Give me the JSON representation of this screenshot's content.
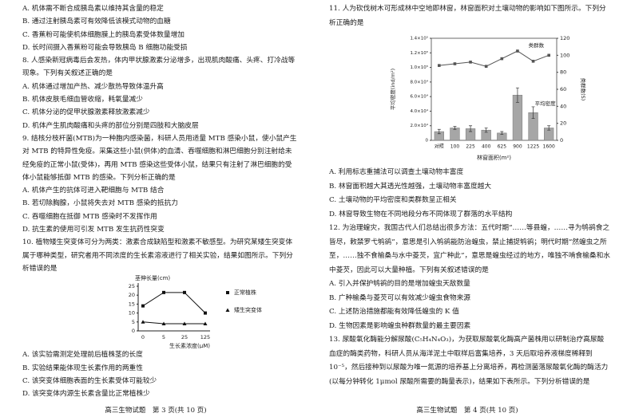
{
  "left_page": {
    "q7_options": [
      "A. 机体需不断合成胰岛素以维持其含量的稳定",
      "B. 通过注射胰岛素可有效降低该模式动物的血糖",
      "C. 香蕉粉可能使机体细胞膜上的胰岛素受体数量增加",
      "D. 长时间摄入香蕉粉可能会导致胰岛 B 细胞功能受损"
    ],
    "q8": {
      "stem": "8. 人感染新冠病毒后会发热，体内甲状腺激素分泌增多，出现肌肉酸痛、头疼、打冷战等现象。下列有关叙述正确的是",
      "options": [
        "A. 机体通过增加产热、减少散热导致体温升高",
        "B. 机体皮肤毛细血管收缩，耗氧量减少",
        "C. 机体分泌的促甲状腺激素释放激素减少",
        "D. 机体产生肌肉酸痛和头疼的部位分别是四肢和大脑皮层"
      ]
    },
    "q9": {
      "stem": "9. 结核分枝杆菌(MTB)为一种胞内感染菌，科研人员用适量 MTB 感染小鼠，使小鼠产生对 MTB 的特异性免疫。采集这些小鼠(供体)的血清、吞噬细胞和淋巴细胞分别注射给未经免疫的正常小鼠(受体)，再用 MTB 感染这些受体小鼠，结果只有注射了淋巴细胞的受体小鼠能够抵御 MTB 的感染。下列分析正确的是",
      "options": [
        "A. 机体产生的抗体可进入靶细胞与 MTB 结合",
        "B. 若切除胸腺，小鼠将失去对 MTB 感染的抵抗力",
        "C. 吞噬细胞在抵御 MTB 感染时不发挥作用",
        "D. 抗生素的使用可引发 MTB 发生抗药性突变"
      ]
    },
    "q10": {
      "stem": "10. 植物矮生突变体可分为两类：激素合成缺陷型和激素不敏感型。为研究某矮生突变体属于哪种类型，研究者用不同浓度的生长素溶液进行了相关实验，结果如图所示。下列分析错误的是",
      "figure": {
        "type": "line",
        "y_label": "茎伸长量(cm)",
        "x_label": "生长素浓度(μM)",
        "categories": [
          "0",
          "5",
          "25",
          "125"
        ],
        "series": [
          {
            "name": "正常植株",
            "color": "#111111",
            "marker": "square",
            "values": [
              14,
              21.5,
              21.5,
              10
            ]
          },
          {
            "name": "矮生突变体",
            "color": "#111111",
            "marker": "triangle",
            "values": [
              5,
              4,
              4,
              4
            ]
          }
        ],
        "ylim": [
          0,
          25
        ],
        "yticks": [
          0,
          5,
          10,
          15,
          20,
          25
        ]
      },
      "options": [
        "A. 该实验需测定处理前后植株茎的长度",
        "B. 实验结果能体现生长素作用的两重性",
        "C. 该突变体细胞表面的生长素受体可能较少",
        "D. 该突变体内源生长素含量比正常植株少"
      ]
    },
    "footer": "高三生物试题　第 3 页(共 10 页)"
  },
  "right_page": {
    "q11": {
      "stem": "11. 人为砍伐树木可形成林中空地即林窗，林窗面积对土壤动物的影响如下图所示。下列分析正确的是",
      "figure": {
        "type": "bar_line",
        "y_label": "平均密度(ind/m²)",
        "y2_label": "类群数(S)",
        "x_label": "林窗面积(m²)",
        "categories": [
          "对照",
          "100",
          "225",
          "400",
          "625",
          "900",
          "1225",
          "1600"
        ],
        "series": [
          {
            "name": "平均密度",
            "type": "bar",
            "color": "#a6a6a6",
            "values": [
              12000,
              17000,
              16000,
              14000,
              10000,
              62000,
              38000,
              17000
            ],
            "errors": [
              3000,
              2000,
              4000,
              3000,
              2000,
              10000,
              8000,
              3000
            ]
          },
          {
            "name": "类群数",
            "type": "line",
            "axis": "y2",
            "color": "#555555",
            "values": [
              88,
              90,
              92,
              87,
              96,
              105,
              93,
              100
            ]
          }
        ],
        "ylim": [
          0,
          140000
        ],
        "yticks": [
          0,
          {
            "value": 20000,
            "label": "2.0×10⁴"
          },
          {
            "value": 40000,
            "label": "4.0×10⁴"
          },
          {
            "value": 60000,
            "label": "6.0×10⁴"
          },
          {
            "value": 80000,
            "label": "8.0×10⁴"
          },
          {
            "value": 100000,
            "label": "1.0×10⁵"
          },
          {
            "value": 120000,
            "label": "1.2×10⁵"
          },
          {
            "value": 140000,
            "label": "1.4×10⁵"
          }
        ],
        "y2lim": [
          0,
          120
        ],
        "y2ticks": [
          0,
          20,
          40,
          60,
          80,
          100,
          120
        ]
      },
      "options": [
        "A. 利用标志重捕法可以调查土壤动物丰富度",
        "B. 林窗面积越大其透光性越强，土壤动物丰富度越大",
        "C. 土壤动物的平均密度和类群数呈正相关",
        "D. 林窗导致生物在不同地段分布不同体现了群落的水平结构"
      ]
    },
    "q12": {
      "stem": "12. 为治理蝗灾，我国古代人们总结出很多方法：五代时期“……等县蝗，……寻为鸲鹆食之皆尽，敕禁罗弋鸲鹆”，意思是引入鸲鹆能防治蝗虫，禁止捕捉鸲鹆；明代时期“然蝗虫之所至，……独不食榆桑与水中菱芡，宜广种此”，意思是蝗虫经过的地方，唯独不啃食榆桑和水中菱芡，因此可以大量种植。下列有关叙述错误的是",
      "options": [
        "A. 引入并保护鸲鹆的目的是增加蝗虫天敌数量",
        "B. 广种榆桑与菱芡可以有效减少蝗虫食物来源",
        "C. 上述防治措施都能有效降低蝗虫的 K 值",
        "D. 生物因素是影响蝗虫种群数量的最主要因素"
      ]
    },
    "q13": {
      "stem": "13. 尿酸氧化酶能分解尿酸(C₅H₄N₄O₃)，为获取尿酸氧化酶高产菌株用以研制治疗高尿酸血症的酶类药物，科研人员从海洋泥土中取样后富集培养，3 天后取培养液梯度稀释到 10⁻⁵，然后接种到以尿酸为唯一氮源的培养基上分离培养，再检测菌落尿酸氧化酶的酶活力(以每分钟转化 1μmol 尿酸所需要的酶量表示)，结果如下表所示。下列分析错误的是"
    },
    "footer": "高三生物试题　第 4 页(共 10 页)"
  }
}
